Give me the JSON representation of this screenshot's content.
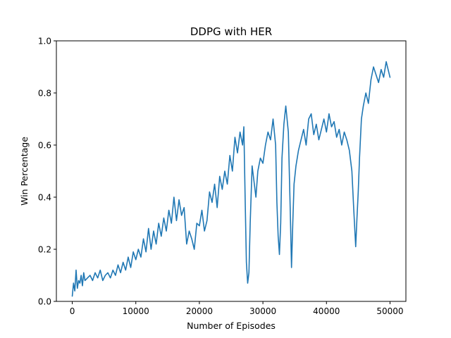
{
  "chart_data": {
    "type": "line",
    "title": "DDPG with HER",
    "xlabel": "Number of Episodes",
    "ylabel": "Win Percentage",
    "xlim": [
      -2500,
      52500
    ],
    "ylim": [
      0.0,
      1.0
    ],
    "xticks": [
      0,
      10000,
      20000,
      30000,
      40000,
      50000
    ],
    "yticks": [
      0.0,
      0.2,
      0.4,
      0.6,
      0.8,
      1.0
    ],
    "xtick_labels": [
      "0",
      "10000",
      "20000",
      "30000",
      "40000",
      "50000"
    ],
    "ytick_labels": [
      "0.0",
      "0.2",
      "0.4",
      "0.6",
      "0.8",
      "1.0"
    ],
    "grid": false,
    "colors": {
      "line": "#1f77b4"
    },
    "series": [
      {
        "x": [
          0,
          200,
          400,
          600,
          800,
          1000,
          1200,
          1400,
          1600,
          1800,
          2000,
          2400,
          2800,
          3200,
          3600,
          4000,
          4400,
          4800,
          5200,
          5600,
          6000,
          6400,
          6800,
          7200,
          7600,
          8000,
          8400,
          8800,
          9200,
          9600,
          10000,
          10400,
          10800,
          11200,
          11600,
          12000,
          12400,
          12800,
          13200,
          13600,
          14000,
          14400,
          14800,
          15200,
          15600,
          16000,
          16400,
          16800,
          17200,
          17600,
          18000,
          18400,
          18800,
          19200,
          19600,
          20000,
          20400,
          20800,
          21200,
          21600,
          22000,
          22400,
          22800,
          23200,
          23600,
          24000,
          24400,
          24800,
          25200,
          25600,
          26000,
          26400,
          26800,
          27000,
          27200,
          27400,
          27600,
          27800,
          28000,
          28300,
          28600,
          28900,
          29200,
          29600,
          30000,
          30400,
          30800,
          31200,
          31600,
          32000,
          32200,
          32400,
          32600,
          32800,
          33000,
          33300,
          33600,
          34000,
          34300,
          34500,
          34700,
          34900,
          35200,
          35600,
          36000,
          36400,
          36800,
          37200,
          37600,
          38000,
          38400,
          38800,
          39200,
          39600,
          40000,
          40400,
          40800,
          41200,
          41600,
          42000,
          42400,
          42800,
          43200,
          43600,
          44000,
          44300,
          44600,
          44800,
          45000,
          45200,
          45500,
          45800,
          46200,
          46600,
          47000,
          47400,
          47800,
          48200,
          48600,
          49000,
          49400,
          49800,
          50000
        ],
        "y": [
          0.02,
          0.07,
          0.04,
          0.12,
          0.05,
          0.08,
          0.07,
          0.1,
          0.06,
          0.11,
          0.08,
          0.09,
          0.1,
          0.08,
          0.11,
          0.09,
          0.12,
          0.08,
          0.1,
          0.11,
          0.09,
          0.12,
          0.1,
          0.14,
          0.11,
          0.15,
          0.12,
          0.17,
          0.13,
          0.19,
          0.16,
          0.2,
          0.17,
          0.24,
          0.19,
          0.28,
          0.2,
          0.27,
          0.22,
          0.3,
          0.25,
          0.32,
          0.27,
          0.35,
          0.3,
          0.4,
          0.31,
          0.39,
          0.33,
          0.36,
          0.22,
          0.27,
          0.24,
          0.2,
          0.3,
          0.29,
          0.35,
          0.27,
          0.31,
          0.42,
          0.38,
          0.45,
          0.36,
          0.48,
          0.43,
          0.5,
          0.45,
          0.56,
          0.5,
          0.63,
          0.57,
          0.65,
          0.6,
          0.67,
          0.4,
          0.15,
          0.07,
          0.11,
          0.3,
          0.52,
          0.46,
          0.4,
          0.5,
          0.55,
          0.53,
          0.6,
          0.65,
          0.62,
          0.7,
          0.6,
          0.38,
          0.25,
          0.18,
          0.3,
          0.55,
          0.68,
          0.75,
          0.65,
          0.35,
          0.13,
          0.3,
          0.45,
          0.52,
          0.58,
          0.62,
          0.66,
          0.6,
          0.7,
          0.72,
          0.64,
          0.68,
          0.62,
          0.66,
          0.7,
          0.65,
          0.72,
          0.67,
          0.69,
          0.63,
          0.66,
          0.6,
          0.65,
          0.62,
          0.58,
          0.5,
          0.35,
          0.21,
          0.32,
          0.42,
          0.55,
          0.7,
          0.75,
          0.8,
          0.76,
          0.85,
          0.9,
          0.87,
          0.84,
          0.89,
          0.86,
          0.92,
          0.88,
          0.86
        ]
      }
    ]
  }
}
